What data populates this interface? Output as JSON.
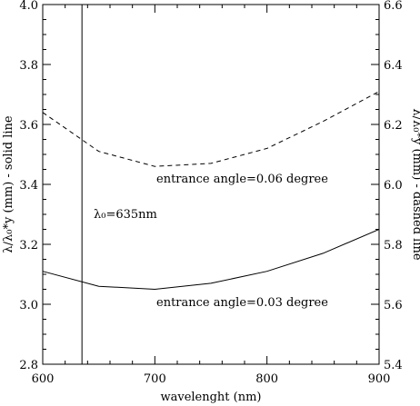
{
  "chart_data": {
    "type": "line",
    "xlabel": "wavelenght (nm)",
    "ylabel_left": "λ/λ₀*y (mm) - solid line",
    "ylabel_right": "λ/λ₀*y (mm) - dashed line",
    "xlim": [
      600,
      900
    ],
    "ylim_left": [
      2.8,
      4.0
    ],
    "ylim_right": [
      5.4,
      6.6
    ],
    "x_ticks": [
      "600",
      "700",
      "800",
      "900"
    ],
    "y_ticks_left": [
      "2.8",
      "3.0",
      "3.2",
      "3.4",
      "3.6",
      "3.8",
      "4.0"
    ],
    "y_ticks_right": [
      "5.4",
      "5.6",
      "5.8",
      "6.0",
      "6.2",
      "6.4",
      "6.6"
    ],
    "grid": false,
    "series": [
      {
        "axis": "left",
        "style": "solid",
        "x": [
          600,
          650,
          700,
          750,
          800,
          850,
          900
        ],
        "y": [
          3.11,
          3.06,
          3.05,
          3.07,
          3.11,
          3.17,
          3.25
        ]
      },
      {
        "axis": "right",
        "style": "dashed",
        "x": [
          600,
          650,
          700,
          750,
          800,
          850,
          900
        ],
        "y": [
          6.24,
          6.11,
          6.06,
          6.07,
          6.12,
          6.21,
          6.31
        ]
      }
    ],
    "vline": {
      "x": 635,
      "label": "λ₀=635nm"
    },
    "annotations": [
      {
        "text": "entrance angle=0.06 degree",
        "series": "dashed"
      },
      {
        "text": "entrance angle=0.03 degree",
        "series": "solid"
      }
    ]
  }
}
